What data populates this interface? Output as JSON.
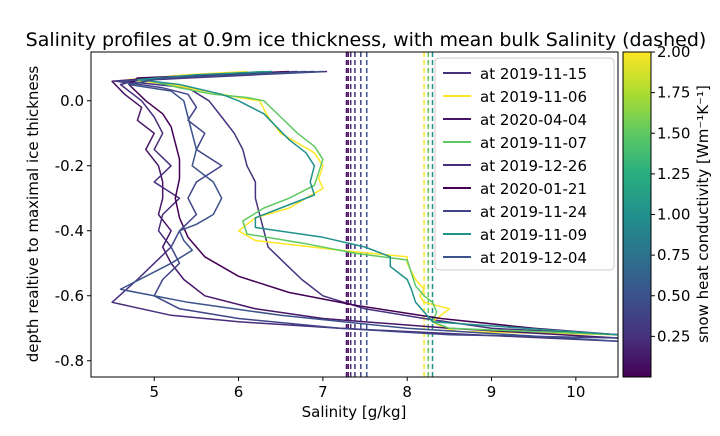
{
  "chart_data": {
    "type": "line",
    "title": "Salinity profiles at 0.9m ice thickness, with mean bulk Salinity (dashed)",
    "xlabel": "Salinity [g/kg]",
    "ylabel": "depth realtive to maximal ice thickness",
    "xlim": [
      4.25,
      10.5
    ],
    "ylim": [
      -0.85,
      0.15
    ],
    "xticks": [
      5,
      6,
      7,
      8,
      9,
      10
    ],
    "yticks": [
      -0.8,
      -0.6,
      -0.4,
      -0.2,
      0.0
    ],
    "grid": false,
    "legend_position": "upper right",
    "colorbar": {
      "label": "snow heat conductivity [Wm⁻¹K⁻¹]",
      "colormap": "viridis",
      "range": [
        0.0,
        2.0
      ],
      "ticks": [
        0.25,
        0.5,
        0.75,
        1.0,
        1.25,
        1.5,
        1.75,
        2.0
      ]
    },
    "series": [
      {
        "name": "at 2019-11-15",
        "color": "#46327e",
        "mean_bulk_salinity": 7.38,
        "points": [
          [
            7.05,
            0.09
          ],
          [
            6.2,
            0.08
          ],
          [
            5.4,
            0.07
          ],
          [
            4.65,
            0.06
          ],
          [
            5.4,
            0.04
          ],
          [
            5.65,
            0.0
          ],
          [
            5.8,
            -0.05
          ],
          [
            5.95,
            -0.1
          ],
          [
            6.05,
            -0.15
          ],
          [
            6.1,
            -0.2
          ],
          [
            6.2,
            -0.25
          ],
          [
            6.2,
            -0.3
          ],
          [
            6.25,
            -0.35
          ],
          [
            6.3,
            -0.4
          ],
          [
            6.35,
            -0.45
          ],
          [
            6.55,
            -0.5
          ],
          [
            6.75,
            -0.55
          ],
          [
            7.0,
            -0.6
          ],
          [
            7.5,
            -0.64
          ],
          [
            8.2,
            -0.67
          ],
          [
            9.0,
            -0.7
          ],
          [
            10.5,
            -0.72
          ]
        ]
      },
      {
        "name": "at 2019-11-06",
        "color": "#fde725",
        "mean_bulk_salinity": 8.2,
        "points": [
          [
            6.1,
            0.09
          ],
          [
            5.4,
            0.08
          ],
          [
            4.7,
            0.065
          ],
          [
            5.2,
            0.05
          ],
          [
            5.6,
            0.03
          ],
          [
            6.0,
            0.01
          ],
          [
            6.25,
            0.0
          ],
          [
            6.35,
            -0.05
          ],
          [
            6.5,
            -0.1
          ],
          [
            6.7,
            -0.13
          ],
          [
            6.9,
            -0.16
          ],
          [
            7.0,
            -0.2
          ],
          [
            6.95,
            -0.24
          ],
          [
            7.0,
            -0.27
          ],
          [
            6.8,
            -0.3
          ],
          [
            6.6,
            -0.33
          ],
          [
            6.2,
            -0.36
          ],
          [
            6.0,
            -0.4
          ],
          [
            6.2,
            -0.43
          ],
          [
            7.2,
            -0.46
          ],
          [
            8.0,
            -0.48
          ],
          [
            8.0,
            -0.5
          ],
          [
            8.1,
            -0.55
          ],
          [
            8.2,
            -0.58
          ],
          [
            8.15,
            -0.6
          ],
          [
            8.2,
            -0.62
          ],
          [
            8.5,
            -0.64
          ],
          [
            8.4,
            -0.66
          ],
          [
            8.3,
            -0.68
          ],
          [
            8.45,
            -0.7
          ],
          [
            8.6,
            -0.71
          ],
          [
            10.5,
            -0.72
          ]
        ]
      },
      {
        "name": "at 2020-04-04",
        "color": "#481668",
        "mean_bulk_salinity": 7.28,
        "points": [
          [
            6.9,
            0.09
          ],
          [
            6.0,
            0.08
          ],
          [
            5.0,
            0.07
          ],
          [
            4.5,
            0.06
          ],
          [
            4.65,
            0.02
          ],
          [
            4.85,
            -0.02
          ],
          [
            4.8,
            -0.06
          ],
          [
            5.0,
            -0.1
          ],
          [
            4.9,
            -0.15
          ],
          [
            5.05,
            -0.2
          ],
          [
            5.1,
            -0.25
          ],
          [
            5.1,
            -0.3
          ],
          [
            5.05,
            -0.35
          ],
          [
            5.2,
            -0.4
          ],
          [
            5.1,
            -0.45
          ],
          [
            5.2,
            -0.5
          ],
          [
            5.35,
            -0.55
          ],
          [
            5.6,
            -0.6
          ],
          [
            6.2,
            -0.64
          ],
          [
            7.0,
            -0.67
          ],
          [
            8.5,
            -0.7
          ],
          [
            10.5,
            -0.73
          ]
        ]
      },
      {
        "name": "at 2019-11-07",
        "color": "#5ec962",
        "mean_bulk_salinity": 8.25,
        "points": [
          [
            6.3,
            0.09
          ],
          [
            5.6,
            0.08
          ],
          [
            4.9,
            0.065
          ],
          [
            5.3,
            0.04
          ],
          [
            5.7,
            0.02
          ],
          [
            6.1,
            0.01
          ],
          [
            6.3,
            0.0
          ],
          [
            6.5,
            -0.05
          ],
          [
            6.7,
            -0.1
          ],
          [
            6.9,
            -0.14
          ],
          [
            7.0,
            -0.18
          ],
          [
            6.95,
            -0.22
          ],
          [
            6.9,
            -0.26
          ],
          [
            6.6,
            -0.3
          ],
          [
            6.3,
            -0.33
          ],
          [
            6.05,
            -0.37
          ],
          [
            6.1,
            -0.41
          ],
          [
            6.8,
            -0.44
          ],
          [
            7.4,
            -0.47
          ],
          [
            8.0,
            -0.49
          ],
          [
            8.05,
            -0.53
          ],
          [
            8.1,
            -0.57
          ],
          [
            8.2,
            -0.6
          ],
          [
            8.3,
            -0.62
          ],
          [
            8.35,
            -0.65
          ],
          [
            8.3,
            -0.68
          ],
          [
            8.5,
            -0.7
          ],
          [
            10.5,
            -0.72
          ]
        ]
      },
      {
        "name": "at 2019-12-26",
        "color": "#472d7b",
        "mean_bulk_salinity": 7.33,
        "points": [
          [
            6.7,
            0.09
          ],
          [
            5.8,
            0.08
          ],
          [
            4.9,
            0.07
          ],
          [
            4.6,
            0.05
          ],
          [
            4.85,
            0.0
          ],
          [
            5.0,
            -0.05
          ],
          [
            5.1,
            -0.1
          ],
          [
            5.0,
            -0.15
          ],
          [
            5.2,
            -0.2
          ],
          [
            5.0,
            -0.25
          ],
          [
            5.3,
            -0.3
          ],
          [
            5.1,
            -0.35
          ],
          [
            5.05,
            -0.4
          ],
          [
            5.2,
            -0.45
          ],
          [
            5.0,
            -0.5
          ],
          [
            4.8,
            -0.55
          ],
          [
            4.5,
            -0.62
          ],
          [
            5.2,
            -0.66
          ],
          [
            6.0,
            -0.68
          ],
          [
            7.2,
            -0.7
          ],
          [
            8.8,
            -0.72
          ],
          [
            10.5,
            -0.74
          ]
        ]
      },
      {
        "name": "at 2020-01-21",
        "color": "#440154",
        "mean_bulk_salinity": 7.3,
        "points": [
          [
            6.6,
            0.09
          ],
          [
            5.7,
            0.08
          ],
          [
            4.8,
            0.07
          ],
          [
            4.7,
            0.05
          ],
          [
            4.9,
            0.0
          ],
          [
            5.1,
            -0.04
          ],
          [
            5.2,
            -0.08
          ],
          [
            5.25,
            -0.13
          ],
          [
            5.3,
            -0.18
          ],
          [
            5.3,
            -0.24
          ],
          [
            5.25,
            -0.3
          ],
          [
            5.3,
            -0.36
          ],
          [
            5.4,
            -0.42
          ],
          [
            5.6,
            -0.48
          ],
          [
            6.0,
            -0.54
          ],
          [
            6.6,
            -0.59
          ],
          [
            7.4,
            -0.63
          ],
          [
            8.4,
            -0.67
          ],
          [
            9.5,
            -0.7
          ],
          [
            10.5,
            -0.72
          ]
        ]
      },
      {
        "name": "at 2019-11-24",
        "color": "#414487",
        "mean_bulk_salinity": 7.45,
        "points": [
          [
            6.8,
            0.09
          ],
          [
            6.0,
            0.08
          ],
          [
            5.2,
            0.07
          ],
          [
            4.55,
            0.06
          ],
          [
            5.1,
            0.04
          ],
          [
            5.4,
            0.02
          ],
          [
            5.5,
            -0.02
          ],
          [
            5.4,
            -0.06
          ],
          [
            5.6,
            -0.1
          ],
          [
            5.5,
            -0.15
          ],
          [
            5.8,
            -0.2
          ],
          [
            5.5,
            -0.25
          ],
          [
            5.4,
            -0.3
          ],
          [
            5.5,
            -0.35
          ],
          [
            5.3,
            -0.4
          ],
          [
            5.2,
            -0.45
          ],
          [
            5.3,
            -0.5
          ],
          [
            5.1,
            -0.55
          ],
          [
            5.0,
            -0.6
          ],
          [
            5.3,
            -0.64
          ],
          [
            6.0,
            -0.67
          ],
          [
            7.2,
            -0.7
          ],
          [
            8.5,
            -0.72
          ],
          [
            10.5,
            -0.73
          ]
        ]
      },
      {
        "name": "at 2019-11-09",
        "color": "#21918c",
        "mean_bulk_salinity": 8.3,
        "points": [
          [
            6.4,
            0.09
          ],
          [
            5.5,
            0.08
          ],
          [
            4.8,
            0.065
          ],
          [
            5.3,
            0.05
          ],
          [
            5.8,
            0.02
          ],
          [
            6.0,
            0.0
          ],
          [
            6.3,
            -0.04
          ],
          [
            6.45,
            -0.08
          ],
          [
            6.6,
            -0.12
          ],
          [
            6.8,
            -0.16
          ],
          [
            6.9,
            -0.2
          ],
          [
            6.85,
            -0.25
          ],
          [
            6.9,
            -0.29
          ],
          [
            6.5,
            -0.33
          ],
          [
            6.2,
            -0.36
          ],
          [
            6.2,
            -0.39
          ],
          [
            7.0,
            -0.42
          ],
          [
            7.5,
            -0.45
          ],
          [
            7.8,
            -0.48
          ],
          [
            7.8,
            -0.51
          ],
          [
            8.0,
            -0.55
          ],
          [
            8.05,
            -0.58
          ],
          [
            8.1,
            -0.62
          ],
          [
            8.2,
            -0.65
          ],
          [
            8.3,
            -0.68
          ],
          [
            10.5,
            -0.72
          ]
        ]
      },
      {
        "name": "at 2019-12-04",
        "color": "#3b528b",
        "mean_bulk_salinity": 7.52,
        "points": [
          [
            7.0,
            0.09
          ],
          [
            6.0,
            0.08
          ],
          [
            5.1,
            0.07
          ],
          [
            4.7,
            0.05
          ],
          [
            5.2,
            0.03
          ],
          [
            5.35,
            0.0
          ],
          [
            5.4,
            -0.05
          ],
          [
            5.45,
            -0.1
          ],
          [
            5.5,
            -0.15
          ],
          [
            5.45,
            -0.2
          ],
          [
            5.7,
            -0.25
          ],
          [
            5.8,
            -0.3
          ],
          [
            5.7,
            -0.35
          ],
          [
            5.5,
            -0.38
          ],
          [
            5.3,
            -0.4
          ],
          [
            5.35,
            -0.43
          ],
          [
            5.45,
            -0.46
          ],
          [
            5.2,
            -0.5
          ],
          [
            4.9,
            -0.54
          ],
          [
            4.6,
            -0.58
          ],
          [
            5.4,
            -0.62
          ],
          [
            6.5,
            -0.66
          ],
          [
            8.0,
            -0.7
          ],
          [
            10.5,
            -0.74
          ]
        ]
      }
    ]
  }
}
